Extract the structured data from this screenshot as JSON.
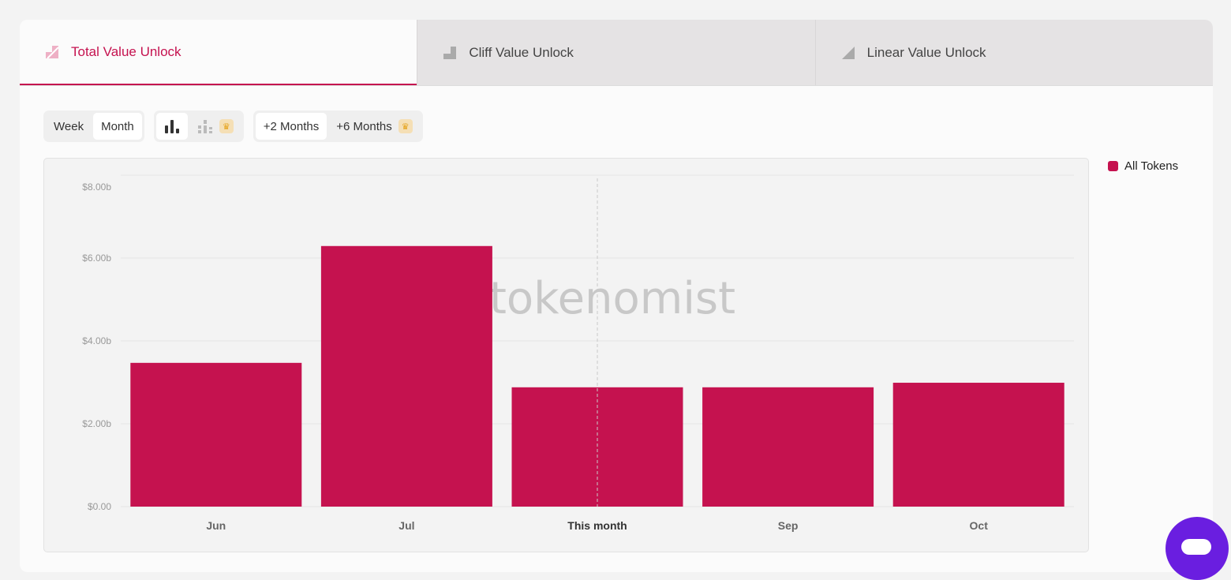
{
  "tabs": [
    {
      "label": "Total Value Unlock",
      "icon": "total-unlock-icon",
      "active": true
    },
    {
      "label": "Cliff Value Unlock",
      "icon": "cliff-unlock-icon",
      "active": false
    },
    {
      "label": "Linear Value Unlock",
      "icon": "linear-unlock-icon",
      "active": false
    }
  ],
  "controls": {
    "period": [
      "Week",
      "Month"
    ],
    "period_selected": "Month",
    "chart_types": [
      "bar-chart-icon",
      "stacked-bar-chart-icon"
    ],
    "range": [
      "+2 Months",
      "+6 Months"
    ],
    "premium_icon": "crown-icon"
  },
  "watermark": "tokenomist",
  "colors": {
    "accent": "#c5124f",
    "chat": "#6a1ee0"
  },
  "chart_data": {
    "type": "bar",
    "categories": [
      "Jun",
      "Jul",
      "This month",
      "Sep",
      "Oct"
    ],
    "current_category": "This month",
    "series": [
      {
        "name": "All Tokens",
        "color": "#c5124f",
        "values": [
          3.47,
          6.29,
          2.88,
          2.88,
          2.99
        ]
      }
    ],
    "yticks": [
      0,
      2,
      4,
      6,
      8
    ],
    "ytick_labels": [
      "$0.00",
      "$2.00b",
      "$4.00b",
      "$6.00b",
      "$8.00b"
    ],
    "ylim": [
      0,
      8
    ],
    "unit": "billion USD",
    "legend": "right",
    "grid": true
  }
}
